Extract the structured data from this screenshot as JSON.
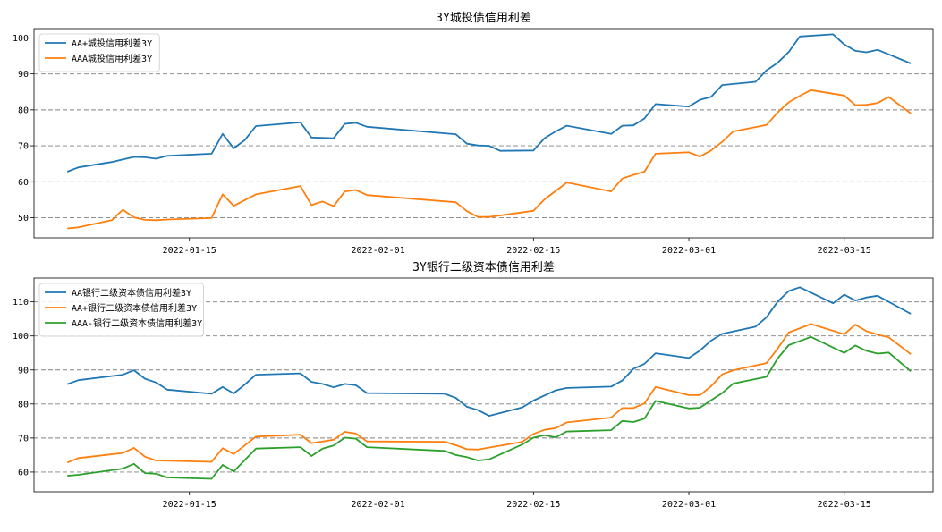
{
  "chart_data": [
    {
      "type": "line",
      "title": "3Y城投债信用利差",
      "xlabel": "",
      "ylabel": "",
      "x_ticks": [
        "2022-01-15",
        "2022-02-01",
        "2022-02-15",
        "2022-03-01",
        "2022-03-15"
      ],
      "y_ticks": [
        50,
        60,
        70,
        80,
        90,
        100
      ],
      "xlim": [
        "2022-01-01",
        "2022-03-23"
      ],
      "ylim": [
        44.4,
        102.6
      ],
      "grid": "horizontal dashed",
      "legend_position": "top-left",
      "series": [
        {
          "name": "AA+城投信用利差3Y",
          "color": "#1f77b4",
          "points": [
            [
              "2022-01-04",
              62.8
            ],
            [
              "2022-01-05",
              64.0
            ],
            [
              "2022-01-08",
              65.5
            ],
            [
              "2022-01-10",
              66.9
            ],
            [
              "2022-01-11",
              66.8
            ],
            [
              "2022-01-12",
              66.4
            ],
            [
              "2022-01-13",
              67.2
            ],
            [
              "2022-01-17",
              67.8
            ],
            [
              "2022-01-18",
              73.3
            ],
            [
              "2022-01-19",
              69.3
            ],
            [
              "2022-01-20",
              71.6
            ],
            [
              "2022-01-21",
              75.5
            ],
            [
              "2022-01-25",
              76.5
            ],
            [
              "2022-01-26",
              72.3
            ],
            [
              "2022-01-28",
              72.1
            ],
            [
              "2022-01-29",
              76.1
            ],
            [
              "2022-01-30",
              76.4
            ],
            [
              "2022-01-31",
              75.3
            ],
            [
              "2022-02-08",
              73.2
            ],
            [
              "2022-02-09",
              70.6
            ],
            [
              "2022-02-10",
              70.1
            ],
            [
              "2022-02-11",
              70.0
            ],
            [
              "2022-02-12",
              68.6
            ],
            [
              "2022-02-15",
              68.7
            ],
            [
              "2022-02-16",
              72.1
            ],
            [
              "2022-02-17",
              74.0
            ],
            [
              "2022-02-18",
              75.6
            ],
            [
              "2022-02-22",
              73.3
            ],
            [
              "2022-02-23",
              75.6
            ],
            [
              "2022-02-24",
              75.7
            ],
            [
              "2022-02-25",
              77.6
            ],
            [
              "2022-02-26",
              81.6
            ],
            [
              "2022-03-01",
              80.9
            ],
            [
              "2022-03-02",
              82.8
            ],
            [
              "2022-03-03",
              83.6
            ],
            [
              "2022-03-04",
              86.9
            ],
            [
              "2022-03-07",
              87.8
            ],
            [
              "2022-03-08",
              91.0
            ],
            [
              "2022-03-09",
              93.1
            ],
            [
              "2022-03-10",
              96.1
            ],
            [
              "2022-03-11",
              100.4
            ],
            [
              "2022-03-14",
              101.0
            ],
            [
              "2022-03-15",
              98.2
            ],
            [
              "2022-03-16",
              96.4
            ],
            [
              "2022-03-17",
              96.0
            ],
            [
              "2022-03-18",
              96.7
            ],
            [
              "2022-03-21",
              92.9
            ]
          ]
        },
        {
          "name": "AAA城投信用利差3Y",
          "color": "#ff7f0e",
          "points": [
            [
              "2022-01-04",
              47.0
            ],
            [
              "2022-01-05",
              47.3
            ],
            [
              "2022-01-08",
              49.3
            ],
            [
              "2022-01-09",
              52.2
            ],
            [
              "2022-01-10",
              50.1
            ],
            [
              "2022-01-11",
              49.4
            ],
            [
              "2022-01-12",
              49.3
            ],
            [
              "2022-01-13",
              49.5
            ],
            [
              "2022-01-17",
              49.9
            ],
            [
              "2022-01-18",
              56.5
            ],
            [
              "2022-01-19",
              53.3
            ],
            [
              "2022-01-21",
              56.5
            ],
            [
              "2022-01-25",
              58.8
            ],
            [
              "2022-01-26",
              53.5
            ],
            [
              "2022-01-27",
              54.5
            ],
            [
              "2022-01-28",
              53.2
            ],
            [
              "2022-01-29",
              57.3
            ],
            [
              "2022-01-30",
              57.7
            ],
            [
              "2022-01-31",
              56.3
            ],
            [
              "2022-02-08",
              54.3
            ],
            [
              "2022-02-09",
              51.8
            ],
            [
              "2022-02-10",
              50.2
            ],
            [
              "2022-02-11",
              50.2
            ],
            [
              "2022-02-15",
              51.9
            ],
            [
              "2022-02-16",
              55.1
            ],
            [
              "2022-02-18",
              59.8
            ],
            [
              "2022-02-22",
              57.3
            ],
            [
              "2022-02-23",
              60.9
            ],
            [
              "2022-02-24",
              61.9
            ],
            [
              "2022-02-25",
              62.8
            ],
            [
              "2022-02-26",
              67.8
            ],
            [
              "2022-03-01",
              68.2
            ],
            [
              "2022-03-02",
              67.0
            ],
            [
              "2022-03-03",
              68.7
            ],
            [
              "2022-03-04",
              71.1
            ],
            [
              "2022-03-05",
              74.0
            ],
            [
              "2022-03-08",
              75.8
            ],
            [
              "2022-03-09",
              79.3
            ],
            [
              "2022-03-10",
              82.1
            ],
            [
              "2022-03-11",
              83.9
            ],
            [
              "2022-03-12",
              85.5
            ],
            [
              "2022-03-15",
              84.0
            ],
            [
              "2022-03-16",
              81.3
            ],
            [
              "2022-03-17",
              81.4
            ],
            [
              "2022-03-18",
              81.9
            ],
            [
              "2022-03-19",
              83.6
            ],
            [
              "2022-03-21",
              79.0
            ]
          ]
        }
      ]
    },
    {
      "type": "line",
      "title": "3Y银行二级资本债信用利差",
      "xlabel": "",
      "ylabel": "",
      "x_ticks": [
        "2022-01-15",
        "2022-02-01",
        "2022-02-15",
        "2022-03-01",
        "2022-03-15"
      ],
      "y_ticks": [
        60,
        70,
        80,
        90,
        100,
        110
      ],
      "xlim": [
        "2022-01-01",
        "2022-03-23"
      ],
      "ylim": [
        54.2,
        117.0
      ],
      "grid": "horizontal dashed",
      "legend_position": "top-left",
      "series": [
        {
          "name": "AA银行二级资本债信用利差3Y",
          "color": "#1f77b4",
          "points": [
            [
              "2022-01-04",
              85.8
            ],
            [
              "2022-01-05",
              87.0
            ],
            [
              "2022-01-09",
              88.6
            ],
            [
              "2022-01-10",
              89.9
            ],
            [
              "2022-01-11",
              87.4
            ],
            [
              "2022-01-12",
              86.3
            ],
            [
              "2022-01-13",
              84.2
            ],
            [
              "2022-01-17",
              83.0
            ],
            [
              "2022-01-18",
              85.0
            ],
            [
              "2022-01-19",
              83.1
            ],
            [
              "2022-01-20",
              85.7
            ],
            [
              "2022-01-21",
              88.6
            ],
            [
              "2022-01-25",
              89.0
            ],
            [
              "2022-01-26",
              86.5
            ],
            [
              "2022-01-27",
              85.9
            ],
            [
              "2022-01-28",
              84.9
            ],
            [
              "2022-01-29",
              85.9
            ],
            [
              "2022-01-30",
              85.5
            ],
            [
              "2022-01-31",
              83.2
            ],
            [
              "2022-02-07",
              83.0
            ],
            [
              "2022-02-08",
              81.8
            ],
            [
              "2022-02-09",
              79.2
            ],
            [
              "2022-02-10",
              78.2
            ],
            [
              "2022-02-11",
              76.5
            ],
            [
              "2022-02-14",
              79.0
            ],
            [
              "2022-02-15",
              81.0
            ],
            [
              "2022-02-17",
              84.0
            ],
            [
              "2022-02-18",
              84.7
            ],
            [
              "2022-02-22",
              85.1
            ],
            [
              "2022-02-23",
              86.9
            ],
            [
              "2022-02-24",
              90.3
            ],
            [
              "2022-02-25",
              91.8
            ],
            [
              "2022-02-26",
              94.9
            ],
            [
              "2022-03-01",
              93.5
            ],
            [
              "2022-03-02",
              95.7
            ],
            [
              "2022-03-03",
              98.6
            ],
            [
              "2022-03-04",
              100.6
            ],
            [
              "2022-03-07",
              102.7
            ],
            [
              "2022-03-08",
              105.5
            ],
            [
              "2022-03-09",
              110.1
            ],
            [
              "2022-03-10",
              113.2
            ],
            [
              "2022-03-11",
              114.3
            ],
            [
              "2022-03-14",
              109.6
            ],
            [
              "2022-03-15",
              112.1
            ],
            [
              "2022-03-16",
              110.4
            ],
            [
              "2022-03-17",
              111.3
            ],
            [
              "2022-03-18",
              111.8
            ],
            [
              "2022-03-21",
              106.5
            ]
          ]
        },
        {
          "name": "AA+银行二级资本债信用利差3Y",
          "color": "#ff7f0e",
          "points": [
            [
              "2022-01-04",
              62.8
            ],
            [
              "2022-01-05",
              64.1
            ],
            [
              "2022-01-09",
              65.6
            ],
            [
              "2022-01-10",
              67.1
            ],
            [
              "2022-01-11",
              64.5
            ],
            [
              "2022-01-12",
              63.4
            ],
            [
              "2022-01-17",
              63.0
            ],
            [
              "2022-01-18",
              67.0
            ],
            [
              "2022-01-19",
              65.3
            ],
            [
              "2022-01-21",
              70.4
            ],
            [
              "2022-01-25",
              71.0
            ],
            [
              "2022-01-26",
              68.5
            ],
            [
              "2022-01-28",
              69.5
            ],
            [
              "2022-01-29",
              71.8
            ],
            [
              "2022-01-30",
              71.3
            ],
            [
              "2022-01-31",
              69.0
            ],
            [
              "2022-02-07",
              68.9
            ],
            [
              "2022-02-08",
              67.9
            ],
            [
              "2022-02-09",
              66.7
            ],
            [
              "2022-02-10",
              66.6
            ],
            [
              "2022-02-14",
              68.9
            ],
            [
              "2022-02-15",
              71.2
            ],
            [
              "2022-02-16",
              72.4
            ],
            [
              "2022-02-17",
              72.9
            ],
            [
              "2022-02-18",
              74.6
            ],
            [
              "2022-02-22",
              76.0
            ],
            [
              "2022-02-23",
              78.8
            ],
            [
              "2022-02-24",
              78.8
            ],
            [
              "2022-02-25",
              80.2
            ],
            [
              "2022-02-26",
              85.0
            ],
            [
              "2022-03-01",
              82.6
            ],
            [
              "2022-03-02",
              82.6
            ],
            [
              "2022-03-03",
              85.2
            ],
            [
              "2022-03-04",
              88.7
            ],
            [
              "2022-03-05",
              89.9
            ],
            [
              "2022-03-08",
              92.0
            ],
            [
              "2022-03-09",
              96.3
            ],
            [
              "2022-03-10",
              101.0
            ],
            [
              "2022-03-12",
              103.5
            ],
            [
              "2022-03-15",
              100.5
            ],
            [
              "2022-03-16",
              103.3
            ],
            [
              "2022-03-17",
              101.4
            ],
            [
              "2022-03-18",
              100.4
            ],
            [
              "2022-03-19",
              99.6
            ],
            [
              "2022-03-21",
              94.6
            ]
          ]
        },
        {
          "name": "AAA-银行二级资本债信用利差3Y",
          "color": "#2ca02c",
          "points": [
            [
              "2022-01-04",
              58.9
            ],
            [
              "2022-01-05",
              59.2
            ],
            [
              "2022-01-09",
              61.0
            ],
            [
              "2022-01-10",
              62.4
            ],
            [
              "2022-01-11",
              59.7
            ],
            [
              "2022-01-12",
              59.5
            ],
            [
              "2022-01-13",
              58.4
            ],
            [
              "2022-01-17",
              58.0
            ],
            [
              "2022-01-18",
              62.1
            ],
            [
              "2022-01-19",
              60.2
            ],
            [
              "2022-01-21",
              66.9
            ],
            [
              "2022-01-25",
              67.3
            ],
            [
              "2022-01-26",
              64.7
            ],
            [
              "2022-01-27",
              66.9
            ],
            [
              "2022-01-28",
              67.8
            ],
            [
              "2022-01-29",
              70.1
            ],
            [
              "2022-01-30",
              69.8
            ],
            [
              "2022-01-31",
              67.3
            ],
            [
              "2022-02-07",
              66.2
            ],
            [
              "2022-02-08",
              65.0
            ],
            [
              "2022-02-09",
              64.4
            ],
            [
              "2022-02-10",
              63.4
            ],
            [
              "2022-02-11",
              63.7
            ],
            [
              "2022-02-14",
              68.1
            ],
            [
              "2022-02-15",
              70.1
            ],
            [
              "2022-02-16",
              70.8
            ],
            [
              "2022-02-17",
              70.2
            ],
            [
              "2022-02-18",
              71.9
            ],
            [
              "2022-02-22",
              72.3
            ],
            [
              "2022-02-23",
              75.0
            ],
            [
              "2022-02-24",
              74.7
            ],
            [
              "2022-02-25",
              75.7
            ],
            [
              "2022-02-26",
              80.9
            ],
            [
              "2022-03-01",
              78.7
            ],
            [
              "2022-03-02",
              78.9
            ],
            [
              "2022-03-03",
              81.1
            ],
            [
              "2022-03-04",
              83.2
            ],
            [
              "2022-03-05",
              86.0
            ],
            [
              "2022-03-08",
              88.0
            ],
            [
              "2022-03-09",
              93.4
            ],
            [
              "2022-03-10",
              97.3
            ],
            [
              "2022-03-12",
              99.7
            ],
            [
              "2022-03-15",
              95.0
            ],
            [
              "2022-03-16",
              97.2
            ],
            [
              "2022-03-17",
              95.6
            ],
            [
              "2022-03-18",
              94.8
            ],
            [
              "2022-03-19",
              95.1
            ],
            [
              "2022-03-21",
              89.6
            ]
          ]
        }
      ]
    }
  ]
}
